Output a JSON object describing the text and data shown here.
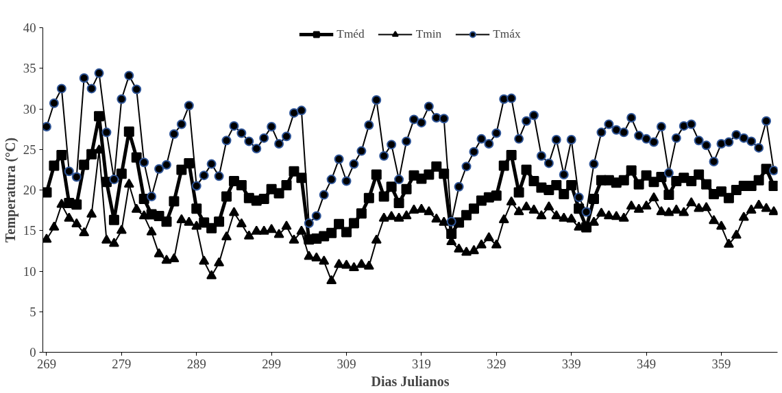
{
  "chart_data": {
    "type": "line",
    "xlabel": "Dias Julianos",
    "ylabel": "Temperatura (°C)",
    "x": [
      269,
      270,
      271,
      272,
      273,
      274,
      275,
      276,
      277,
      278,
      279,
      280,
      281,
      282,
      283,
      284,
      285,
      286,
      287,
      288,
      289,
      290,
      291,
      292,
      293,
      294,
      295,
      296,
      297,
      298,
      299,
      300,
      301,
      302,
      303,
      304,
      305,
      306,
      307,
      308,
      309,
      310,
      311,
      312,
      313,
      314,
      315,
      316,
      317,
      318,
      319,
      320,
      321,
      322,
      323,
      324,
      325,
      326,
      327,
      328,
      329,
      330,
      331,
      332,
      333,
      334,
      335,
      336,
      337,
      338,
      339,
      340,
      341,
      342,
      343,
      344,
      345,
      346,
      347,
      348,
      349,
      350,
      351,
      352,
      353,
      354,
      355,
      356,
      357,
      358,
      359,
      360,
      361,
      362,
      363,
      364,
      365,
      366
    ],
    "series": [
      {
        "name": "Tméd",
        "color": "#000000",
        "marker": "square",
        "values": [
          19.7,
          23.0,
          24.3,
          18.4,
          18.2,
          23.1,
          24.4,
          29.1,
          21.0,
          16.3,
          22.0,
          27.2,
          24.0,
          18.9,
          17.0,
          16.8,
          16.1,
          18.6,
          22.5,
          23.3,
          17.7,
          16.0,
          15.3,
          16.1,
          19.2,
          21.1,
          20.6,
          19.0,
          18.7,
          18.9,
          20.1,
          19.6,
          20.6,
          22.3,
          21.5,
          13.9,
          14.0,
          14.3,
          14.7,
          15.8,
          14.8,
          15.9,
          17.1,
          19.0,
          21.9,
          19.2,
          20.4,
          18.4,
          20.1,
          21.8,
          21.4,
          21.9,
          22.9,
          22.0,
          14.6,
          16.0,
          16.9,
          17.7,
          18.7,
          19.1,
          19.3,
          23.0,
          24.3,
          19.7,
          22.5,
          21.1,
          20.3,
          20.0,
          20.6,
          19.5,
          20.6,
          17.7,
          15.4,
          18.9,
          21.2,
          21.2,
          20.9,
          21.2,
          22.4,
          20.7,
          21.8,
          21.0,
          21.6,
          19.4,
          21.1,
          21.5,
          21.1,
          21.9,
          20.7,
          19.5,
          19.8,
          19.0,
          20.0,
          20.5,
          20.5,
          21.2,
          22.6,
          20.5
        ]
      },
      {
        "name": "Tmin",
        "color": "#000000",
        "marker": "triangle",
        "values": [
          13.9,
          15.4,
          18.2,
          16.5,
          15.8,
          14.7,
          17.0,
          24.9,
          13.8,
          13.4,
          15.0,
          20.7,
          17.6,
          16.8,
          14.8,
          12.1,
          11.3,
          11.5,
          16.3,
          16.0,
          15.5,
          11.2,
          9.4,
          11.0,
          14.2,
          17.2,
          15.8,
          14.3,
          14.9,
          14.9,
          15.1,
          14.5,
          15.5,
          13.8,
          14.9,
          11.8,
          11.6,
          11.2,
          8.8,
          10.8,
          10.7,
          10.4,
          10.8,
          10.6,
          13.8,
          16.5,
          16.7,
          16.5,
          16.8,
          17.5,
          17.6,
          17.3,
          16.4,
          16.0,
          13.6,
          12.7,
          12.3,
          12.5,
          13.2,
          14.1,
          13.2,
          16.3,
          18.5,
          17.3,
          17.9,
          17.5,
          16.8,
          17.9,
          16.8,
          16.5,
          16.4,
          15.4,
          15.3,
          16.0,
          17.1,
          16.8,
          16.7,
          16.5,
          18.0,
          17.6,
          18.0,
          19.0,
          17.3,
          17.2,
          17.5,
          17.2,
          18.4,
          17.7,
          17.8,
          16.2,
          15.5,
          13.3,
          14.4,
          16.6,
          17.5,
          18.1,
          17.7,
          17.3
        ]
      },
      {
        "name": "Tmáx",
        "color": "#000000",
        "marker": "circle",
        "values": [
          27.8,
          30.7,
          32.5,
          22.3,
          21.6,
          33.8,
          32.5,
          34.4,
          27.1,
          21.3,
          31.2,
          34.1,
          32.4,
          23.4,
          19.2,
          22.6,
          23.1,
          26.9,
          28.1,
          30.4,
          20.5,
          21.8,
          23.2,
          21.7,
          26.1,
          27.9,
          27.0,
          26.0,
          25.1,
          26.4,
          27.8,
          25.7,
          26.6,
          29.5,
          29.8,
          15.9,
          16.8,
          19.4,
          21.3,
          23.8,
          21.1,
          23.2,
          24.8,
          28.0,
          31.1,
          24.2,
          25.6,
          21.3,
          26.0,
          28.7,
          28.3,
          30.3,
          28.9,
          28.8,
          16.1,
          20.4,
          22.9,
          24.7,
          26.3,
          25.7,
          27.0,
          31.2,
          31.3,
          26.3,
          28.5,
          29.2,
          24.2,
          23.3,
          26.2,
          21.9,
          26.2,
          19.1,
          17.3,
          23.2,
          27.1,
          28.1,
          27.4,
          27.1,
          28.9,
          26.7,
          26.3,
          25.9,
          27.8,
          22.1,
          26.4,
          27.9,
          28.1,
          26.1,
          25.5,
          23.5,
          25.7,
          25.9,
          26.8,
          26.4,
          26.0,
          25.2,
          28.5,
          22.4
        ]
      }
    ],
    "xlim": [
      268.5,
      366.5
    ],
    "xticks": [
      269,
      279,
      289,
      299,
      309,
      319,
      329,
      339,
      349,
      359
    ],
    "ylim": [
      0,
      40
    ],
    "yticks": [
      0,
      5,
      10,
      15,
      20,
      25,
      30,
      35,
      40
    ],
    "legend": "top"
  }
}
